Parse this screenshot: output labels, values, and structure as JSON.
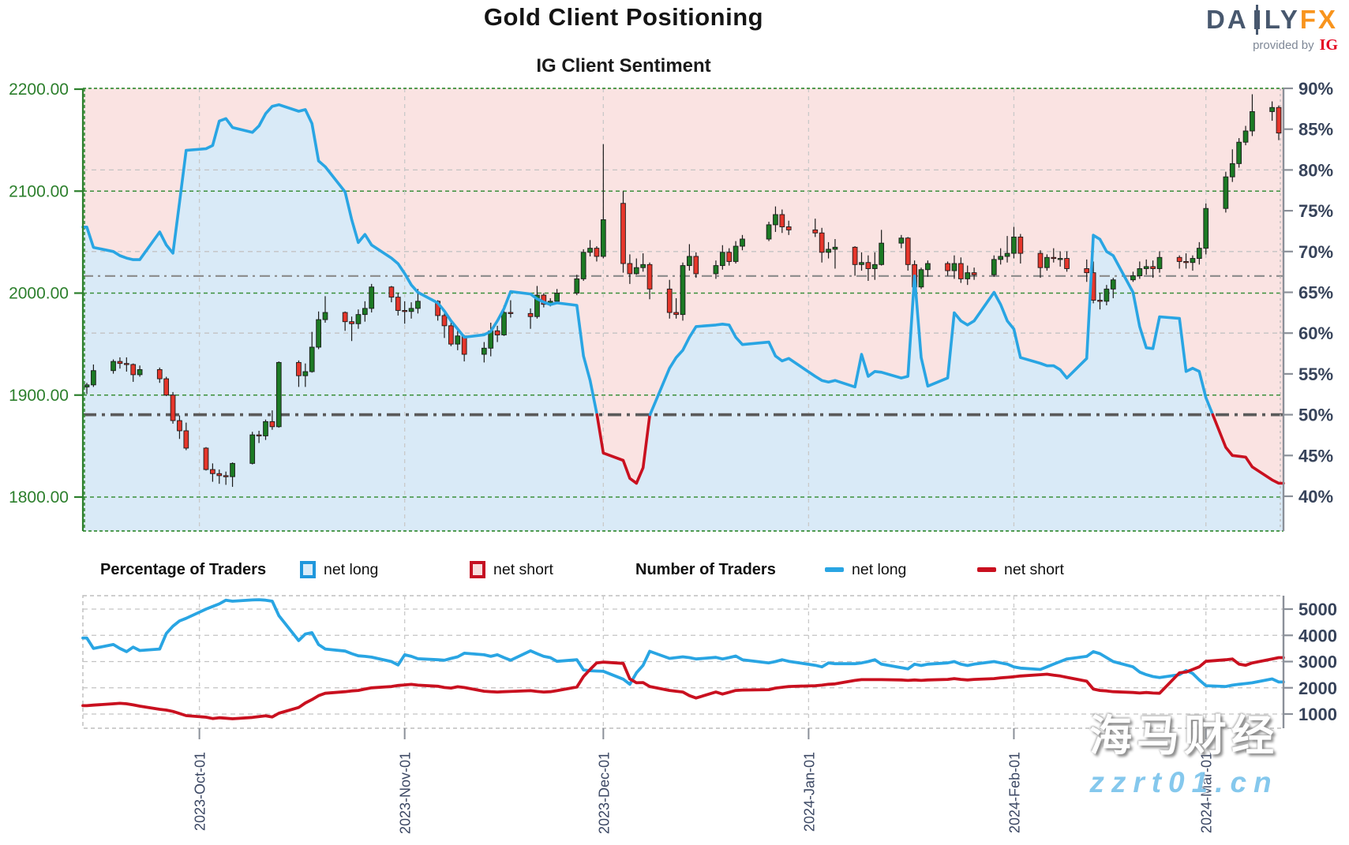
{
  "header": {
    "title": "Gold Client Positioning",
    "subtitle": "IG Client Sentiment"
  },
  "logo": {
    "brand_left": "DA",
    "brand_right": "LY",
    "brand_fx": "FX",
    "provided_by": "provided by",
    "ig": "IG"
  },
  "legend": {
    "pct_header": "Percentage of Traders",
    "pct_long_label": "net long",
    "pct_short_label": "net short",
    "num_header": "Number of Traders",
    "num_long_label": "net long",
    "num_short_label": "net short"
  },
  "watermark": {
    "line1": "海马财经",
    "line2": "zzrt01.cn"
  },
  "colors": {
    "net_long_blue": "#29a5e3",
    "net_short_red": "#c9101f",
    "candle_up": "#1c7a24",
    "candle_down": "#e5362b",
    "axis_green": "#2c7f2c",
    "axis_slate": "#37435a",
    "bg_pink": "#fae3e2",
    "bg_blue": "#d9eaf7",
    "grid_gray": "#c3c3c3",
    "grid_green": "#3a8f3a",
    "logo_orange": "#f8941d",
    "logo_slate": "#48586e",
    "ig_red": "#e40521",
    "watermark_blue": "#7cc4ec"
  },
  "axes": {
    "price_tick_labels": [
      "2200.00",
      "2100.00",
      "2000.00",
      "1900.00",
      "1800.00"
    ],
    "price_tick_values": [
      2200,
      2100,
      2000,
      1900,
      1800
    ],
    "pct_tick_values": [
      90,
      85,
      80,
      75,
      70,
      65,
      60,
      55,
      50,
      45,
      40
    ],
    "pct_grid_values": [
      80,
      70,
      60
    ],
    "count_tick_values": [
      5000,
      4000,
      3000,
      2000,
      1000
    ],
    "months": [
      {
        "date": "2023-10-01",
        "label": "2023-Oct-01"
      },
      {
        "date": "2023-11-01",
        "label": "2023-Nov-01"
      },
      {
        "date": "2023-12-01",
        "label": "2023-Dec-01"
      },
      {
        "date": "2024-01-01",
        "label": "2024-Jan-01"
      },
      {
        "date": "2024-02-01",
        "label": "2024-Feb-01"
      },
      {
        "date": "2024-03-01",
        "label": "2024-Mar-01"
      }
    ]
  },
  "chart_data": [
    {
      "type": "candlestick+line",
      "title": "IG Client Sentiment",
      "price_ylim": [
        1766,
        2200
      ],
      "pct_ylim": [
        35.7,
        90
      ],
      "grid": true,
      "reference_lines_pct": [
        {
          "value": 50,
          "style": "dashdot-bold"
        },
        {
          "value": 67,
          "style": "dashdot"
        }
      ],
      "dates": [
        "2023-09-14",
        "2023-09-15",
        "2023-09-18",
        "2023-09-19",
        "2023-09-20",
        "2023-09-21",
        "2023-09-22",
        "2023-09-25",
        "2023-09-26",
        "2023-09-27",
        "2023-09-28",
        "2023-09-29",
        "2023-10-02",
        "2023-10-03",
        "2023-10-04",
        "2023-10-05",
        "2023-10-06",
        "2023-10-09",
        "2023-10-10",
        "2023-10-11",
        "2023-10-12",
        "2023-10-13",
        "2023-10-16",
        "2023-10-17",
        "2023-10-18",
        "2023-10-19",
        "2023-10-20",
        "2023-10-23",
        "2023-10-24",
        "2023-10-25",
        "2023-10-26",
        "2023-10-27",
        "2023-10-30",
        "2023-10-31",
        "2023-11-01",
        "2023-11-02",
        "2023-11-03",
        "2023-11-06",
        "2023-11-07",
        "2023-11-08",
        "2023-11-09",
        "2023-11-10",
        "2023-11-13",
        "2023-11-14",
        "2023-11-15",
        "2023-11-16",
        "2023-11-17",
        "2023-11-20",
        "2023-11-21",
        "2023-11-22",
        "2023-11-23",
        "2023-11-24",
        "2023-11-27",
        "2023-11-28",
        "2023-11-29",
        "2023-11-30",
        "2023-12-01",
        "2023-12-04",
        "2023-12-05",
        "2023-12-06",
        "2023-12-07",
        "2023-12-08",
        "2023-12-11",
        "2023-12-12",
        "2023-12-13",
        "2023-12-14",
        "2023-12-15",
        "2023-12-18",
        "2023-12-19",
        "2023-12-20",
        "2023-12-21",
        "2023-12-22",
        "2023-12-26",
        "2023-12-27",
        "2023-12-28",
        "2023-12-29",
        "2024-01-02",
        "2024-01-03",
        "2024-01-04",
        "2024-01-05",
        "2024-01-08",
        "2024-01-09",
        "2024-01-10",
        "2024-01-11",
        "2024-01-12",
        "2024-01-15",
        "2024-01-16",
        "2024-01-17",
        "2024-01-18",
        "2024-01-19",
        "2024-01-22",
        "2024-01-23",
        "2024-01-24",
        "2024-01-25",
        "2024-01-26",
        "2024-01-29",
        "2024-01-30",
        "2024-01-31",
        "2024-02-01",
        "2024-02-02",
        "2024-02-05",
        "2024-02-06",
        "2024-02-07",
        "2024-02-08",
        "2024-02-09",
        "2024-02-12",
        "2024-02-13",
        "2024-02-14",
        "2024-02-15",
        "2024-02-16",
        "2024-02-19",
        "2024-02-20",
        "2024-02-21",
        "2024-02-22",
        "2024-02-23",
        "2024-02-26",
        "2024-02-27",
        "2024-02-28",
        "2024-02-29",
        "2024-03-01",
        "2024-03-04",
        "2024-03-05",
        "2024-03-06",
        "2024-03-07",
        "2024-03-08",
        "2024-03-11",
        "2024-03-12"
      ],
      "open": [
        1908,
        1910,
        1924,
        1933,
        1931,
        1930,
        1920,
        1925,
        1916,
        1900,
        1875,
        1865,
        1848,
        1827,
        1823,
        1821,
        1820,
        1833,
        1861,
        1860,
        1874,
        1869,
        1932,
        1919,
        1923,
        1947,
        1974,
        1981,
        1972,
        1970,
        1979,
        1985,
        2006,
        1996,
        1983,
        1982,
        1985,
        1992,
        1978,
        1968,
        1950,
        1958,
        1940,
        1946,
        1963,
        1959,
        1981,
        1980,
        1977,
        1998,
        1989,
        1992,
        2000,
        2014,
        2040,
        2044,
        2036,
        2088,
        2029,
        2019,
        2025,
        2028,
        2004,
        1981,
        1979,
        2027,
        2036,
        2019,
        2027,
        2040,
        2031,
        2046,
        2053,
        2067,
        2077,
        2065,
        2062,
        2059,
        2040,
        2043,
        2045,
        2028,
        2030,
        2024,
        2028,
        2049,
        2054,
        2028,
        2006,
        2023,
        2029,
        2022,
        2029,
        2014,
        2020,
        2018,
        2033,
        2036,
        2039,
        2055,
        2039,
        2025,
        2035,
        2034,
        2034,
        2024,
        2020,
        1993,
        1992,
        2004,
        2013,
        2017,
        2024,
        2026,
        2024,
        2035,
        2031,
        2030,
        2034,
        2044,
        2083,
        2114,
        2127,
        2148,
        2159,
        2178,
        2182
      ],
      "high": [
        1912,
        1930,
        1935,
        1937,
        1937,
        1931,
        1929,
        1927,
        1918,
        1903,
        1880,
        1873,
        1849,
        1833,
        1827,
        1825,
        1834,
        1864,
        1865,
        1876,
        1885,
        1933,
        1934,
        1931,
        1962,
        1982,
        1997,
        1982,
        1977,
        1984,
        1992,
        2009,
        2007,
        2000,
        1992,
        1991,
        2004,
        1993,
        1980,
        1972,
        1963,
        1959,
        1952,
        1971,
        1968,
        1988,
        1993,
        1985,
        2007,
        2000,
        1995,
        2004,
        2018,
        2043,
        2052,
        2046,
        2146,
        2100,
        2038,
        2034,
        2039,
        2030,
        2013,
        1995,
        2030,
        2048,
        2040,
        2032,
        2047,
        2044,
        2051,
        2057,
        2070,
        2085,
        2082,
        2071,
        2073,
        2064,
        2050,
        2053,
        2046,
        2040,
        2037,
        2040,
        2062,
        2057,
        2055,
        2032,
        2025,
        2032,
        2031,
        2037,
        2035,
        2027,
        2025,
        2037,
        2044,
        2056,
        2065,
        2058,
        2042,
        2038,
        2044,
        2041,
        2041,
        2033,
        2031,
        2000,
        2008,
        2015,
        2021,
        2031,
        2033,
        2032,
        2041,
        2037,
        2039,
        2037,
        2050,
        2088,
        2119,
        2141,
        2152,
        2164,
        2195,
        2188,
        2184
      ],
      "low": [
        1901,
        1908,
        1921,
        1926,
        1923,
        1913,
        1918,
        1912,
        1899,
        1872,
        1857,
        1846,
        1826,
        1815,
        1813,
        1812,
        1810,
        1832,
        1853,
        1856,
        1866,
        1868,
        1908,
        1908,
        1922,
        1945,
        1971,
        1963,
        1953,
        1965,
        1972,
        1981,
        1991,
        1978,
        1970,
        1975,
        1980,
        1973,
        1956,
        1948,
        1944,
        1933,
        1932,
        1938,
        1952,
        1958,
        1976,
        1965,
        1975,
        1986,
        1987,
        1990,
        1998,
        2012,
        2036,
        2031,
        2034,
        2020,
        2009,
        2018,
        2021,
        1994,
        1975,
        1975,
        1973,
        2022,
        2015,
        2014,
        2023,
        2027,
        2029,
        2042,
        2051,
        2060,
        2059,
        2057,
        2055,
        2030,
        2034,
        2024,
        2017,
        2022,
        2012,
        2013,
        2027,
        2044,
        2022,
        2001,
        2004,
        2016,
        2017,
        2014,
        2010,
        2008,
        2013,
        2016,
        2028,
        2030,
        2034,
        2029,
        2015,
        2022,
        2030,
        2026,
        2021,
        2011,
        1990,
        1984,
        1988,
        1995,
        2011,
        2014,
        2018,
        2015,
        2020,
        2024,
        2024,
        2022,
        2028,
        2038,
        2079,
        2109,
        2123,
        2145,
        2154,
        2169,
        2150
      ],
      "close": [
        1910,
        1924,
        1933,
        1931,
        1930,
        1920,
        1925,
        1916,
        1900,
        1875,
        1865,
        1848,
        1827,
        1823,
        1821,
        1820,
        1833,
        1861,
        1860,
        1874,
        1869,
        1932,
        1919,
        1923,
        1947,
        1974,
        1981,
        1972,
        1970,
        1979,
        1985,
        2006,
        1996,
        1983,
        1982,
        1985,
        1992,
        1978,
        1968,
        1950,
        1958,
        1940,
        1946,
        1963,
        1959,
        1981,
        1980,
        1977,
        1998,
        1989,
        1992,
        2000,
        2014,
        2040,
        2044,
        2036,
        2072,
        2029,
        2019,
        2025,
        2028,
        2004,
        1981,
        1979,
        2027,
        2036,
        2019,
        2027,
        2040,
        2031,
        2046,
        2053,
        2067,
        2077,
        2065,
        2062,
        2059,
        2040,
        2043,
        2045,
        2028,
        2030,
        2024,
        2028,
        2049,
        2054,
        2028,
        2006,
        2023,
        2029,
        2022,
        2029,
        2014,
        2020,
        2018,
        2033,
        2036,
        2039,
        2055,
        2039,
        2025,
        2035,
        2034,
        2034,
        2024,
        2020,
        1993,
        1992,
        2004,
        2013,
        2017,
        2024,
        2026,
        2024,
        2035,
        2031,
        2030,
        2034,
        2044,
        2083,
        2114,
        2127,
        2148,
        2159,
        2178,
        2182,
        2157
      ],
      "net_long_pct": [
        73.0,
        70.5,
        70.0,
        69.5,
        69.2,
        69.0,
        69.0,
        72.4,
        70.8,
        69.8,
        76.0,
        82.4,
        82.6,
        83.0,
        86.0,
        86.3,
        85.2,
        84.6,
        85.4,
        86.9,
        87.8,
        88.0,
        87.2,
        87.4,
        85.7,
        81.1,
        80.4,
        77.3,
        73.9,
        71.1,
        72.1,
        70.8,
        69.2,
        68.5,
        67.3,
        65.9,
        65.0,
        63.7,
        62.7,
        61.5,
        60.5,
        59.5,
        59.8,
        60.2,
        61.5,
        63.0,
        65.1,
        64.8,
        64.2,
        63.8,
        63.5,
        63.7,
        63.4,
        57.2,
        54.2,
        50.2,
        45.3,
        44.4,
        42.2,
        41.6,
        43.5,
        49.9,
        55.7,
        57.0,
        57.9,
        59.5,
        60.8,
        61.0,
        61.1,
        61.0,
        59.5,
        58.6,
        58.9,
        57.2,
        56.6,
        56.9,
        54.7,
        54.2,
        54.0,
        54.2,
        53.4,
        57.4,
        54.7,
        55.3,
        55.2,
        54.5,
        54.7,
        67.0,
        57.0,
        53.5,
        54.5,
        62.5,
        61.5,
        61.0,
        61.5,
        65.0,
        63.5,
        61.5,
        60.5,
        57.0,
        56.3,
        56.0,
        56.0,
        55.5,
        54.5,
        56.9,
        72.0,
        71.5,
        70.0,
        69.5,
        65.0,
        60.8,
        58.2,
        58.1,
        62.0,
        61.8,
        55.3,
        55.7,
        55.3,
        52.1,
        46.0,
        45.0,
        44.9,
        44.8,
        43.6,
        42.0,
        41.6
      ]
    },
    {
      "type": "line",
      "title": "Number of Traders",
      "count_ylim": [
        460,
        5510
      ],
      "grid": true,
      "series": [
        {
          "name": "net long",
          "color": "#29a5e3",
          "values": [
            3900,
            3500,
            3650,
            3500,
            3380,
            3550,
            3420,
            3480,
            4070,
            4350,
            4550,
            4650,
            5000,
            5100,
            5200,
            5340,
            5300,
            5350,
            5360,
            5340,
            5300,
            4750,
            3800,
            4050,
            4100,
            3650,
            3480,
            3400,
            3300,
            3220,
            3200,
            3170,
            3000,
            2870,
            3260,
            3200,
            3110,
            3070,
            3050,
            3120,
            3180,
            3320,
            3260,
            3200,
            3260,
            3150,
            3050,
            3410,
            3300,
            3200,
            3150,
            3010,
            3070,
            2680,
            2650,
            2640,
            2630,
            2330,
            2135,
            2570,
            2860,
            3390,
            3120,
            3150,
            3180,
            3150,
            3100,
            3160,
            3100,
            3150,
            3210,
            3070,
            2950,
            3000,
            3070,
            3010,
            2860,
            2800,
            2950,
            2920,
            2920,
            2950,
            3000,
            3070,
            2900,
            2770,
            2720,
            2900,
            2850,
            2900,
            2950,
            3000,
            2900,
            2850,
            2900,
            3000,
            2950,
            2900,
            2800,
            2750,
            2700,
            2800,
            2900,
            3000,
            3100,
            3200,
            3380,
            3300,
            3150,
            3000,
            2800,
            2600,
            2500,
            2430,
            2390,
            2500,
            2660,
            2550,
            2300,
            2080,
            2050,
            2100,
            2135,
            2160,
            2190,
            2340,
            2220
          ]
        },
        {
          "name": "net short",
          "color": "#c9101f",
          "values": [
            1320,
            1340,
            1390,
            1410,
            1390,
            1350,
            1300,
            1180,
            1150,
            1100,
            1020,
            940,
            880,
            830,
            860,
            840,
            820,
            870,
            900,
            930,
            890,
            1030,
            1250,
            1420,
            1550,
            1700,
            1790,
            1850,
            1880,
            1900,
            1950,
            2000,
            2050,
            2090,
            2110,
            2130,
            2100,
            2060,
            2010,
            1990,
            2040,
            2010,
            1870,
            1850,
            1840,
            1850,
            1860,
            1890,
            1860,
            1840,
            1850,
            1890,
            2030,
            2430,
            2700,
            2950,
            2980,
            2930,
            2340,
            2190,
            2200,
            2050,
            1900,
            1870,
            1840,
            1700,
            1610,
            1840,
            1760,
            1830,
            1900,
            1915,
            1930,
            1990,
            2020,
            2050,
            2080,
            2100,
            2135,
            2150,
            2280,
            2310,
            2310,
            2310,
            2310,
            2300,
            2280,
            2300,
            2280,
            2300,
            2320,
            2350,
            2320,
            2300,
            2320,
            2350,
            2380,
            2400,
            2420,
            2450,
            2500,
            2520,
            2480,
            2450,
            2400,
            2250,
            1950,
            1900,
            1880,
            1850,
            1820,
            1800,
            1820,
            1800,
            1790,
            2570,
            2600,
            2700,
            2800,
            3010,
            3070,
            3100,
            2900,
            2860,
            2950,
            3100,
            3150
          ]
        }
      ]
    }
  ]
}
